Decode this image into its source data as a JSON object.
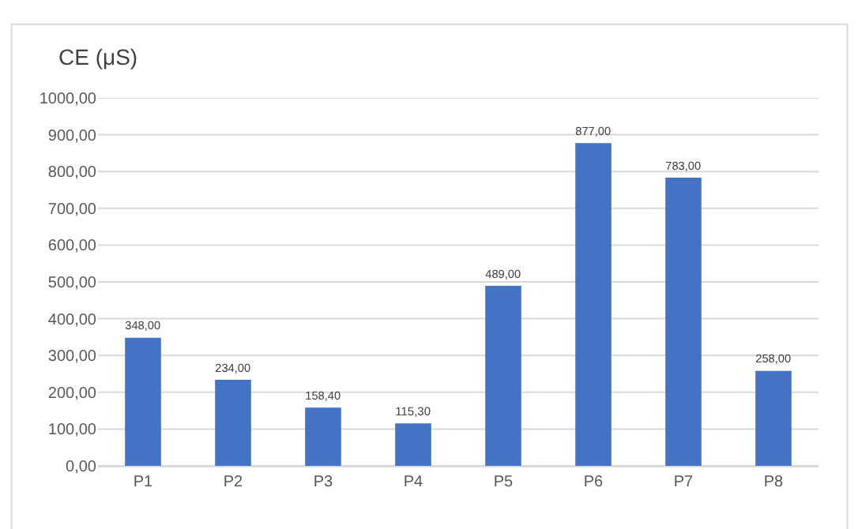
{
  "chart_data": {
    "type": "bar",
    "ylabel": "CE (μS)",
    "categories": [
      "P1",
      "P2",
      "P3",
      "P4",
      "P5",
      "P6",
      "P7",
      "P8"
    ],
    "values": [
      348,
      234,
      158.4,
      115.3,
      489,
      877,
      783,
      258
    ],
    "value_labels": [
      "348,00",
      "234,00",
      "158,40",
      "115,30",
      "489,00",
      "877,00",
      "783,00",
      "258,00"
    ],
    "color": "#4472c4",
    "ylim": [
      0,
      1000
    ],
    "yticks": [
      {
        "value": 0,
        "label": "0,00"
      },
      {
        "value": 100,
        "label": "100,00"
      },
      {
        "value": 200,
        "label": "200,00"
      },
      {
        "value": 300,
        "label": "300,00"
      },
      {
        "value": 400,
        "label": "400,00"
      },
      {
        "value": 500,
        "label": "500,00"
      },
      {
        "value": 600,
        "label": "600,00"
      },
      {
        "value": 700,
        "label": "700,00"
      },
      {
        "value": 800,
        "label": "800,00"
      },
      {
        "value": 900,
        "label": "900,00"
      },
      {
        "value": 1000,
        "label": "1000,00"
      }
    ],
    "grid": "y"
  }
}
